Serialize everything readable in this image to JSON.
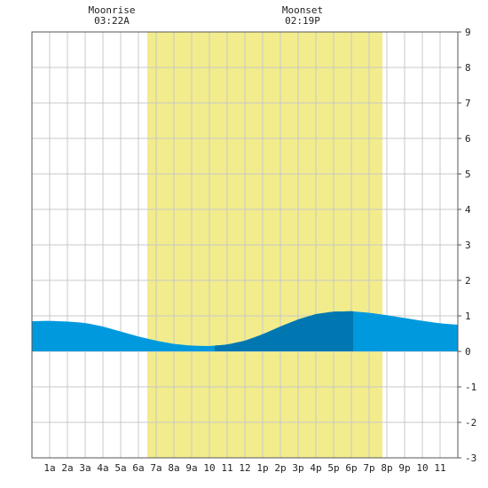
{
  "chart_data": {
    "type": "area",
    "annotations": [
      {
        "label": "Moonrise",
        "time_text": "03:22A",
        "hour": 3.367
      },
      {
        "label": "Moonset",
        "time_text": "02:19P",
        "hour": 14.317
      }
    ],
    "daylight_hours": [
      6.5,
      19.75
    ],
    "highlight_hours": [
      10.3,
      18.1
    ],
    "x_tick_labels": [
      "1a",
      "2a",
      "3a",
      "4a",
      "5a",
      "6a",
      "7a",
      "8a",
      "9a",
      "10",
      "11",
      "12",
      "1p",
      "2p",
      "3p",
      "4p",
      "5p",
      "6p",
      "7p",
      "8p",
      "9p",
      "10",
      "11"
    ],
    "xlim": [
      0,
      24
    ],
    "ylim": [
      -3,
      9
    ],
    "y_ticks": [
      -3,
      -2,
      -1,
      0,
      1,
      2,
      3,
      4,
      5,
      6,
      7,
      8,
      9
    ],
    "grid": true,
    "x": [
      0,
      1,
      2,
      3,
      4,
      5,
      6,
      7,
      8,
      9,
      10,
      11,
      12,
      13,
      14,
      15,
      16,
      17,
      18,
      19,
      20,
      21,
      22,
      23,
      24
    ],
    "y": [
      0.85,
      0.86,
      0.84,
      0.8,
      0.7,
      0.56,
      0.42,
      0.3,
      0.21,
      0.16,
      0.15,
      0.19,
      0.3,
      0.48,
      0.7,
      0.9,
      1.05,
      1.12,
      1.13,
      1.09,
      1.02,
      0.94,
      0.86,
      0.79,
      0.75
    ],
    "colors": {
      "daylight": "#f2ec8c",
      "area": "#0099dd",
      "area_highlight": "#0077b0",
      "grid": "#c8c8c8",
      "border": "#555555"
    }
  }
}
